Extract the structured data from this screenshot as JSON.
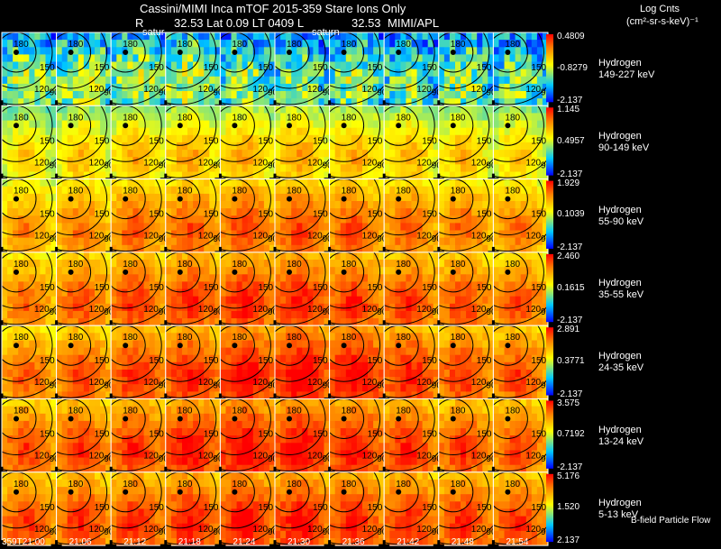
{
  "header": {
    "line1": "Cassini/MIMI Inca mTOF  2015-359   Stare   Ions Only",
    "line2_r": "R",
    "line2_mid": "32.53 Lat 0.09 LT 0409 L",
    "line2_l": "32.53",
    "line2_org": "MIMI/APL",
    "saturn1": "satur",
    "saturn2": "saturn",
    "logcnts": "Log Cnts",
    "units": "(cm²-sr-s-keV)⁻¹"
  },
  "footer": {
    "bfield": "B-field Particle Flow"
  },
  "chart_data": {
    "type": "heatmap",
    "title": "Cassini/MIMI Inca mTOF  2015-359   Stare   Ions Only",
    "x_time_labels": [
      "359T21:00",
      "21:06",
      "21:12",
      "21:18",
      "21:24",
      "21:30",
      "21:36",
      "21:42",
      "21:48",
      "21:54"
    ],
    "ring_labels": [
      "180",
      "150",
      "120",
      "90"
    ],
    "colorbar": {
      "scale": "log",
      "colors": [
        "#0000ff",
        "#00e0ff",
        "#ffff00",
        "#ff0000"
      ]
    },
    "series": [
      {
        "name": "Hydrogen 149-227 keV",
        "species": "Hydrogen",
        "energy": "149-227 keV",
        "cbar_max": "0.4809",
        "cbar_mid": "-0.8279",
        "cbar_min": "-2.137",
        "intensity": [
          0.42,
          0.45,
          0.44,
          0.46,
          0.4,
          0.38,
          0.4,
          0.37,
          0.4,
          0.37
        ]
      },
      {
        "name": "Hydrogen 90-149 keV",
        "species": "Hydrogen",
        "energy": "90-149 keV",
        "cbar_max": "1.145",
        "cbar_mid": "0.4957",
        "cbar_min": "-2.137",
        "intensity": [
          0.58,
          0.62,
          0.64,
          0.66,
          0.66,
          0.66,
          0.65,
          0.64,
          0.62,
          0.6
        ]
      },
      {
        "name": "Hydrogen 55-90 keV",
        "species": "Hydrogen",
        "energy": "55-90 keV",
        "cbar_max": "1.929",
        "cbar_mid": "0.1039",
        "cbar_min": "-2.137",
        "intensity": [
          0.72,
          0.76,
          0.8,
          0.82,
          0.84,
          0.84,
          0.82,
          0.8,
          0.78,
          0.76
        ]
      },
      {
        "name": "Hydrogen 35-55 keV",
        "species": "Hydrogen",
        "energy": "35-55 keV",
        "cbar_max": "2.460",
        "cbar_mid": "0.1615",
        "cbar_min": "-2.137",
        "intensity": [
          0.78,
          0.82,
          0.86,
          0.88,
          0.9,
          0.9,
          0.88,
          0.86,
          0.84,
          0.82
        ]
      },
      {
        "name": "Hydrogen 24-35 keV",
        "species": "Hydrogen",
        "energy": "24-35 keV",
        "cbar_max": "2.891",
        "cbar_mid": "0.3771",
        "cbar_min": "-2.137",
        "intensity": [
          0.8,
          0.84,
          0.88,
          0.9,
          0.94,
          0.96,
          0.95,
          0.9,
          0.86,
          0.84
        ]
      },
      {
        "name": "Hydrogen 13-24 keV",
        "species": "Hydrogen",
        "energy": "13-24 keV",
        "cbar_max": "3.575",
        "cbar_mid": "0.7192",
        "cbar_min": "-2.137",
        "intensity": [
          0.84,
          0.86,
          0.88,
          0.92,
          0.95,
          0.94,
          0.92,
          0.88,
          0.86,
          0.84
        ]
      },
      {
        "name": "Hydrogen 5-13 keV",
        "species": "Hydrogen",
        "energy": "5-13 keV",
        "cbar_max": "5.176",
        "cbar_mid": "1.520",
        "cbar_min": "2.137",
        "intensity": [
          0.85,
          0.87,
          0.88,
          0.9,
          0.92,
          0.92,
          0.9,
          0.88,
          0.87,
          0.86
        ]
      }
    ]
  }
}
